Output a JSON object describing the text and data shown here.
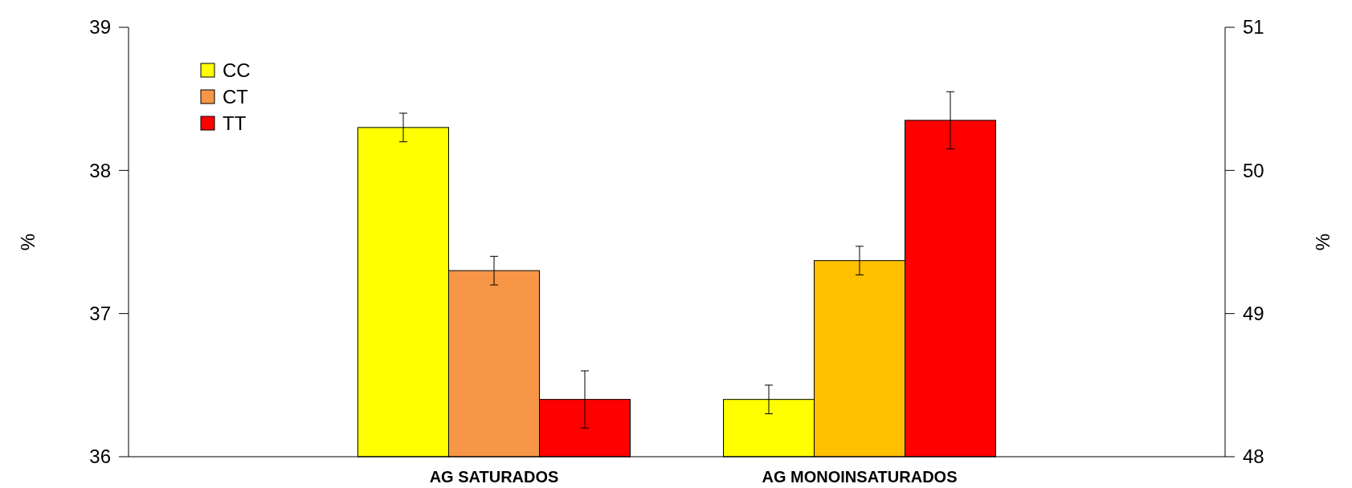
{
  "chart_data": {
    "type": "bar",
    "categories": [
      "AG SATURADOS",
      "AG MONOINSATURADOS"
    ],
    "ylabel": "%",
    "y2label": "%",
    "ylim": [
      36,
      39
    ],
    "yticks": [
      36,
      37,
      38,
      39
    ],
    "y2lim": [
      48,
      51
    ],
    "y2ticks": [
      48,
      49,
      50,
      51
    ],
    "legend": "top left",
    "grid": false,
    "series": [
      {
        "name": "CC",
        "color": "#ffff00",
        "values": [
          38.3,
          null
        ],
        "errors": [
          0.1,
          null
        ]
      },
      {
        "name": "CT",
        "color": "#f79646",
        "values": [
          37.3,
          null
        ],
        "errors": [
          0.1,
          null
        ]
      },
      {
        "name": "TT",
        "color": "#ff0000",
        "values": [
          36.4,
          null
        ],
        "errors": [
          0.2,
          null
        ]
      },
      {
        "axis": "y2",
        "color": "#ffff00",
        "values": [
          null,
          48.4
        ],
        "errors": [
          null,
          0.1
        ]
      },
      {
        "axis": "y2",
        "color": "#ffc000",
        "values": [
          null,
          49.37
        ],
        "errors": [
          null,
          0.1
        ]
      },
      {
        "axis": "y2",
        "color": "#ff0000",
        "values": [
          null,
          50.35
        ],
        "errors": [
          null,
          0.2
        ]
      }
    ]
  }
}
